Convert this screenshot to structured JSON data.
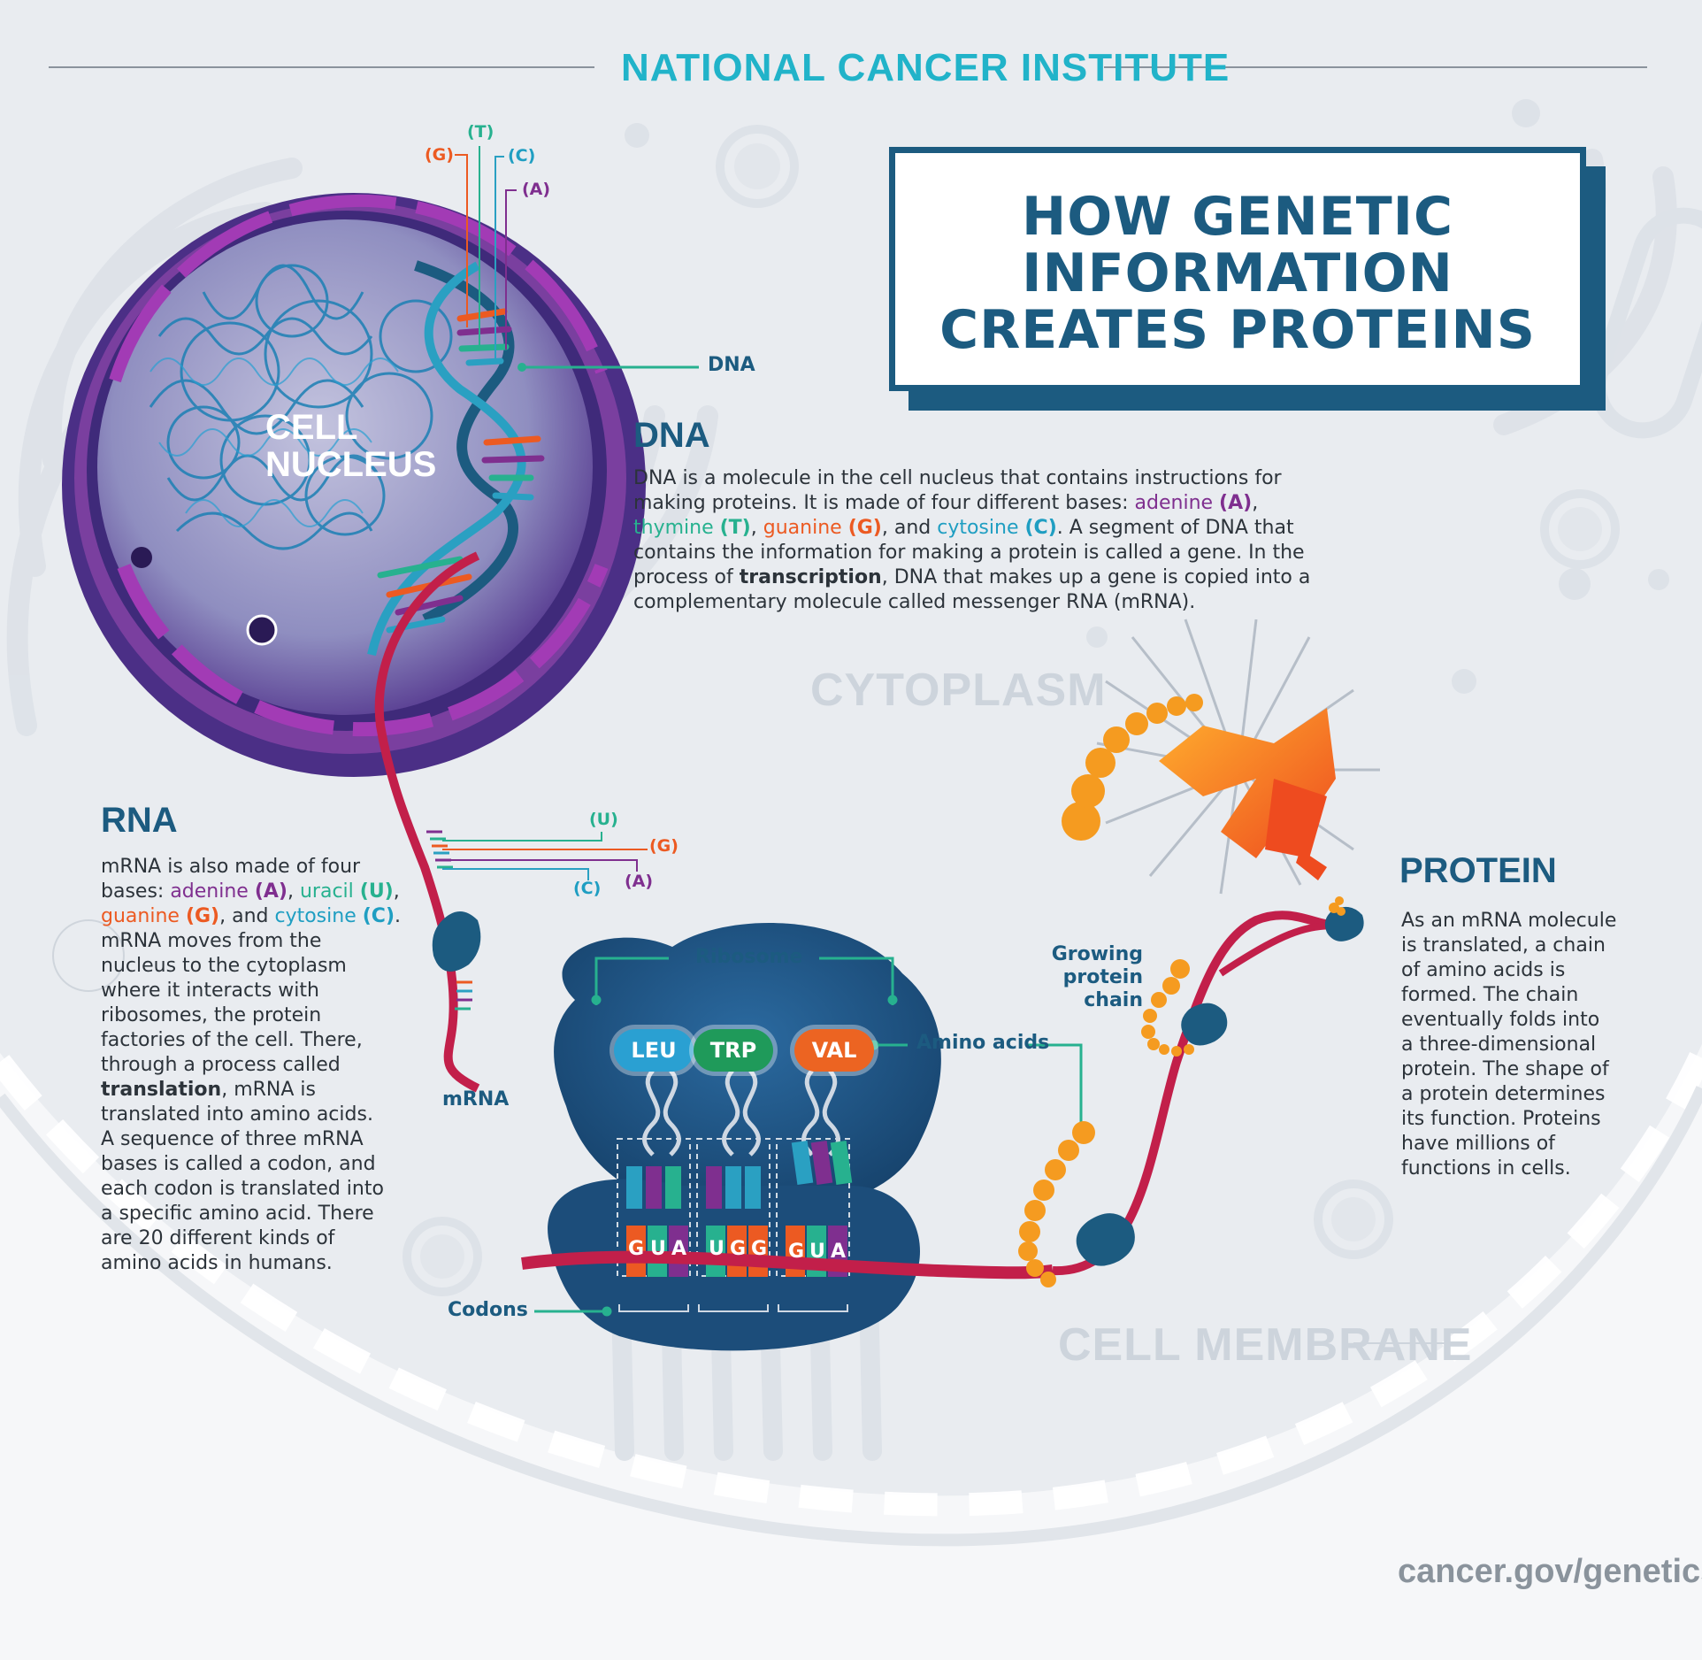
{
  "header": {
    "org": "NATIONAL CANCER INSTITUTE"
  },
  "title": {
    "line1": "HOW GENETIC",
    "line2": "INFORMATION",
    "line3": "CREATES PROTEINS"
  },
  "nucleus": {
    "line1": "CELL",
    "line2": "NUCLEUS"
  },
  "dna_callouts": {
    "g": "(G)",
    "t": "(T)",
    "c": "(C)",
    "a": "(A)",
    "dna": "DNA"
  },
  "dna_section": {
    "heading": "DNA",
    "p1": "DNA is a molecule in the cell nucleus that contains instructions for",
    "p2a": "making proteins. It is made of four different bases: ",
    "adenine": "adenine",
    "a_code": "(A)",
    "comma1": ",",
    "thymine": "thymine",
    "t_code": "(T)",
    "comma2": ", ",
    "guanine": "guanine",
    "g_code": "(G)",
    "and": ", and ",
    "cytosine": "cytosine",
    "c_code": "(C)",
    "p3b": ". A segment of DNA that",
    "p4": "contains the information for making a protein is called a gene. In the",
    "p5a": "process of ",
    "transcription": "transcription",
    "p5b": ", DNA that makes up a gene is copied into a",
    "p6": "complementary molecule called messenger RNA (mRNA)."
  },
  "watermarks": {
    "cytoplasm": "CYTOPLASM",
    "membrane": "CELL MEMBRANE"
  },
  "rna_section": {
    "heading": "RNA",
    "l1": "mRNA is also made of four",
    "l2a": "bases: ",
    "adenine": "adenine",
    "a_code": "(A)",
    "comma1": ", ",
    "uracil": "uracil",
    "u_code": "(U)",
    "comma2": ",",
    "guanine": "guanine",
    "g_code": "(G)",
    "and": ", and ",
    "cytosine": "cytosine",
    "c_code": "(C)",
    "period": ".",
    "l4": "mRNA moves from the",
    "l5": "nucleus to the cytoplasm",
    "l6": "where it interacts with",
    "l7": "ribosomes, the protein",
    "l8": "factories of the cell. There,",
    "l9": "through a process called",
    "translation": "translation",
    "l10b": ", mRNA is",
    "l11": "translated into amino acids.",
    "l12": "A sequence of three mRNA",
    "l13": "bases is called a codon, and",
    "l14": "each codon is translated into",
    "l15": "a specific amino acid. There",
    "l16": "are 20 different kinds of",
    "l17": "amino acids in humans."
  },
  "mrna_callouts": {
    "u": "(U)",
    "g": "(G)",
    "a": "(A)",
    "c": "(C)",
    "mrna": "mRNA"
  },
  "ribosome_section": {
    "ribosome": "Ribosome",
    "amino_acids": "Amino acids",
    "codons": "Codons",
    "aa": [
      "LEU",
      "TRP",
      "VAL"
    ],
    "codon_bases": [
      [
        "G",
        "U",
        "A"
      ],
      [
        "U",
        "G",
        "G"
      ],
      [
        "G",
        "U",
        "A"
      ]
    ]
  },
  "growing": {
    "l1": "Growing",
    "l2": "protein chain"
  },
  "protein_section": {
    "heading": "PROTEIN",
    "l1": "As an mRNA molecule",
    "l2": "is translated, a chain",
    "l3": "of amino acids is",
    "l4": "formed. The chain",
    "l5": "eventually folds into",
    "l6": "a three-dimensional",
    "l7": "protein. The shape of",
    "l8": "a protein determines",
    "l9": "its function. Proteins",
    "l10": "have millions of",
    "l11": "functions in cells."
  },
  "footer": {
    "url": "cancer.gov/genetics"
  },
  "colors": {
    "navy": "#1c5b80",
    "teal": "#21b3c9",
    "purple": "#7f2f8f",
    "green": "#27b18f",
    "orange": "#ec5a22",
    "cyan": "#1f9ec2",
    "mrna_red": "#c21f4a",
    "aa_orange": "#f5a020"
  }
}
